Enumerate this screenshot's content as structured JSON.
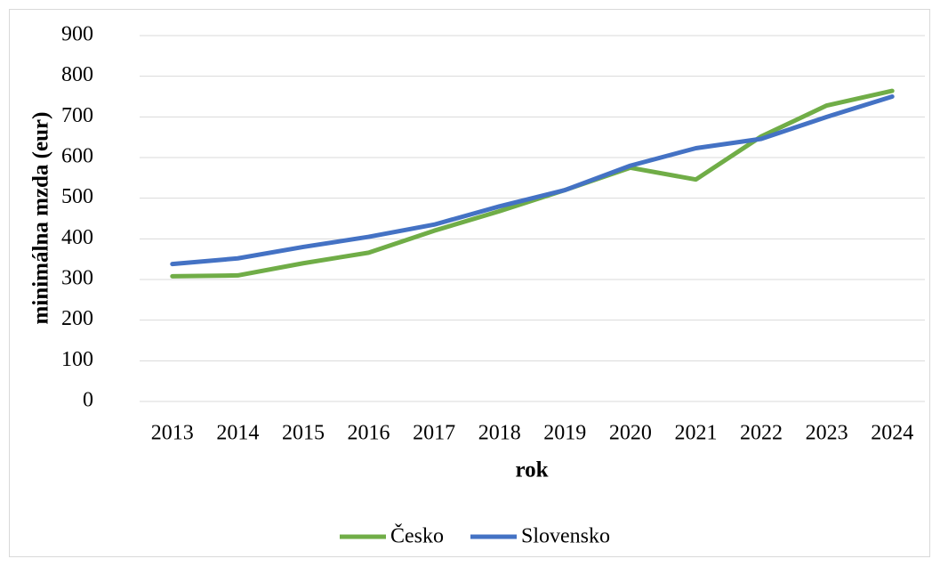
{
  "chart_data": {
    "type": "line",
    "x_label": "rok",
    "y_label": "minimálna mzda (eur)",
    "categories": [
      "2013",
      "2014",
      "2015",
      "2016",
      "2017",
      "2018",
      "2019",
      "2020",
      "2021",
      "2022",
      "2023",
      "2024"
    ],
    "series": [
      {
        "name": "Česko",
        "color": "#70ad47",
        "values": [
          308,
          310,
          340,
          366,
          420,
          468,
          520,
          575,
          546,
          652,
          728,
          764
        ]
      },
      {
        "name": "Slovensko",
        "color": "#4472c4",
        "values": [
          338,
          352,
          380,
          405,
          435,
          480,
          520,
          580,
          623,
          646,
          700,
          750
        ]
      }
    ],
    "ylim": [
      0,
      900
    ],
    "yticks": [
      0,
      100,
      200,
      300,
      400,
      500,
      600,
      700,
      800,
      900
    ],
    "grid": true,
    "legend": "bottom"
  }
}
